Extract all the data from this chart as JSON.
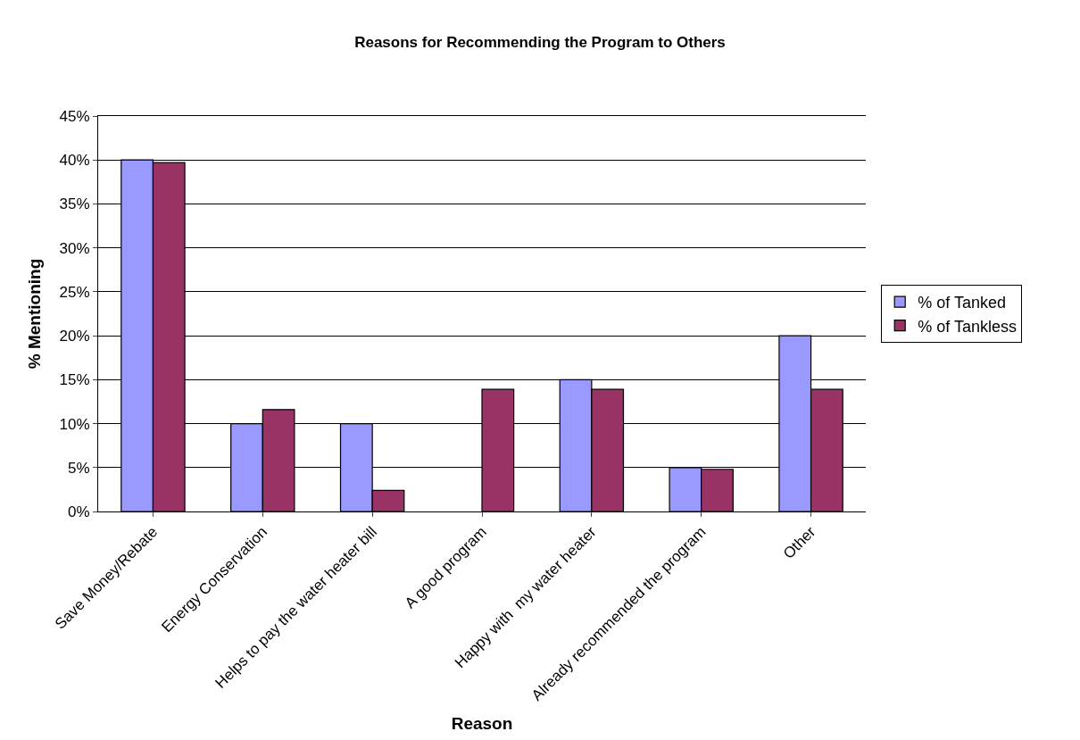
{
  "chart_data": {
    "type": "bar",
    "title": "Reasons for Recommending the Program to Others",
    "xlabel": "Reason",
    "ylabel": "% Mentioning",
    "categories": [
      "Save Money/Rebate",
      "Energy Conservation",
      "Helps to pay the water heater bill",
      "A good program",
      "Happy with  my water heater",
      "Already recommended the program",
      "Other"
    ],
    "series": [
      {
        "name": "% of Tanked",
        "color": "#9999ff",
        "values": [
          40,
          10,
          10,
          0,
          15,
          5,
          20
        ]
      },
      {
        "name": "% of Tankless",
        "color": "#993366",
        "values": [
          39.7,
          11.6,
          2.4,
          13.9,
          13.9,
          4.8,
          13.9
        ]
      }
    ],
    "ylim": [
      0,
      45
    ],
    "yticks": [
      {
        "value": 0,
        "label": "0%"
      },
      {
        "value": 5,
        "label": "5%"
      },
      {
        "value": 10,
        "label": "10%"
      },
      {
        "value": 15,
        "label": "15%"
      },
      {
        "value": 20,
        "label": "20%"
      },
      {
        "value": 25,
        "label": "25%"
      },
      {
        "value": 30,
        "label": "30%"
      },
      {
        "value": 35,
        "label": "35%"
      },
      {
        "value": 40,
        "label": "40%"
      },
      {
        "value": 45,
        "label": "45%"
      }
    ],
    "grid": "y",
    "legend": "right"
  }
}
